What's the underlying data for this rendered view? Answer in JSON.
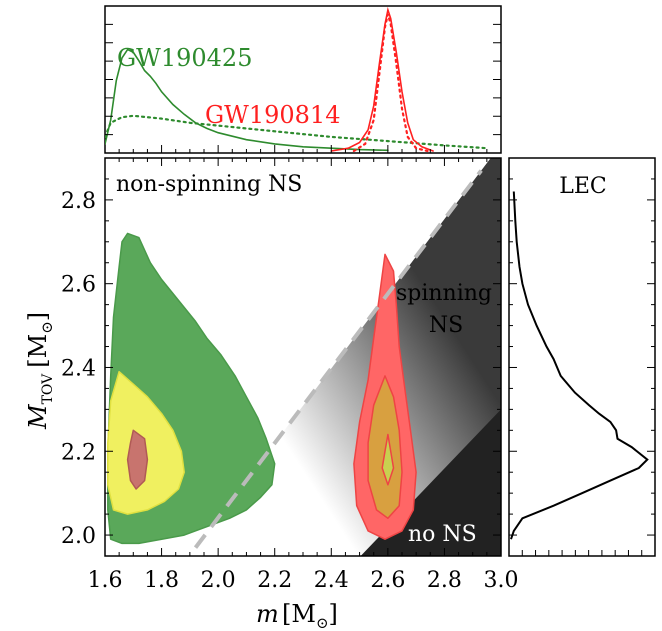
{
  "chart_data": [
    {
      "type": "line",
      "panel": "top-marginal",
      "xlim": [
        1.6,
        3.0
      ],
      "title": "",
      "xlabel": "",
      "ylabel": "",
      "series": [
        {
          "name": "GW190425",
          "color": "#2e8b2e",
          "style": "solid",
          "points": [
            [
              1.6,
              0.05
            ],
            [
              1.62,
              0.22
            ],
            [
              1.64,
              0.5
            ],
            [
              1.66,
              0.66
            ],
            [
              1.68,
              0.72
            ],
            [
              1.7,
              0.7
            ],
            [
              1.72,
              0.64
            ],
            [
              1.74,
              0.57
            ],
            [
              1.76,
              0.53
            ],
            [
              1.78,
              0.48
            ],
            [
              1.8,
              0.42
            ],
            [
              1.84,
              0.33
            ],
            [
              1.88,
              0.26
            ],
            [
              1.92,
              0.2
            ],
            [
              1.96,
              0.16
            ],
            [
              2.0,
              0.13
            ],
            [
              2.1,
              0.08
            ],
            [
              2.2,
              0.05
            ],
            [
              2.3,
              0.03
            ],
            [
              2.4,
              0.02
            ],
            [
              2.5,
              0.01
            ],
            [
              2.6,
              0.005
            ]
          ]
        },
        {
          "name": "GW190425",
          "color": "#2e8b2e",
          "style": "dotted",
          "points": [
            [
              1.6,
              0.1
            ],
            [
              1.62,
              0.2
            ],
            [
              1.66,
              0.24
            ],
            [
              1.7,
              0.25
            ],
            [
              1.8,
              0.23
            ],
            [
              1.9,
              0.2
            ],
            [
              2.0,
              0.18
            ],
            [
              2.2,
              0.14
            ],
            [
              2.4,
              0.1
            ],
            [
              2.6,
              0.07
            ],
            [
              2.8,
              0.04
            ],
            [
              2.95,
              0.02
            ]
          ]
        },
        {
          "name": "GW190814",
          "color": "#ff2020",
          "style": "solid",
          "points": [
            [
              2.4,
              0.0
            ],
            [
              2.46,
              0.02
            ],
            [
              2.5,
              0.06
            ],
            [
              2.53,
              0.15
            ],
            [
              2.55,
              0.32
            ],
            [
              2.57,
              0.62
            ],
            [
              2.59,
              0.9
            ],
            [
              2.6,
              1.0
            ],
            [
              2.61,
              0.94
            ],
            [
              2.63,
              0.7
            ],
            [
              2.65,
              0.42
            ],
            [
              2.67,
              0.2
            ],
            [
              2.69,
              0.08
            ],
            [
              2.72,
              0.03
            ],
            [
              2.76,
              0.0
            ]
          ]
        },
        {
          "name": "GW190814",
          "color": "#ff2020",
          "style": "dotted",
          "points": [
            [
              2.48,
              0.0
            ],
            [
              2.52,
              0.05
            ],
            [
              2.55,
              0.22
            ],
            [
              2.57,
              0.55
            ],
            [
              2.59,
              0.88
            ],
            [
              2.6,
              0.97
            ],
            [
              2.61,
              0.9
            ],
            [
              2.63,
              0.62
            ],
            [
              2.65,
              0.3
            ],
            [
              2.67,
              0.1
            ],
            [
              2.7,
              0.02
            ],
            [
              2.74,
              0.0
            ]
          ]
        }
      ],
      "annotations": [
        "GW190425",
        "GW190814"
      ]
    },
    {
      "type": "scatter",
      "panel": "main",
      "xlabel": "m [M_sun]",
      "ylabel": "M_TOV [M_sun]",
      "xlim": [
        1.6,
        3.0
      ],
      "ylim": [
        1.95,
        2.9
      ],
      "xticks": [
        "1.6",
        "1.8",
        "2.0",
        "2.2",
        "2.4",
        "2.6",
        "2.8",
        "3.0"
      ],
      "yticks": [
        "2.0",
        "2.2",
        "2.4",
        "2.6",
        "2.8"
      ],
      "regions": [
        "non-spinning NS",
        "spinning NS",
        "no NS"
      ],
      "region_lines": [
        {
          "name": "non-spinning limit",
          "style": "dashed",
          "color": "#bbbbbb",
          "points": [
            [
              1.92,
              1.97
            ],
            [
              2.93,
              2.87
            ]
          ]
        },
        {
          "name": "spinning limit",
          "points": [
            [
              2.47,
              1.95
            ],
            [
              3.0,
              2.3
            ]
          ]
        }
      ],
      "contours": [
        {
          "name": "GW190425 outer",
          "color": "#5aa85a",
          "points": [
            [
              1.68,
              2.72
            ],
            [
              1.72,
              2.71
            ],
            [
              1.76,
              2.65
            ],
            [
              1.8,
              2.61
            ],
            [
              1.86,
              2.56
            ],
            [
              1.92,
              2.51
            ],
            [
              1.96,
              2.47
            ],
            [
              2.01,
              2.43
            ],
            [
              2.06,
              2.38
            ],
            [
              2.1,
              2.33
            ],
            [
              2.14,
              2.28
            ],
            [
              2.17,
              2.23
            ],
            [
              2.2,
              2.17
            ],
            [
              2.19,
              2.12
            ],
            [
              2.15,
              2.09
            ],
            [
              2.1,
              2.06
            ],
            [
              2.04,
              2.04
            ],
            [
              1.96,
              2.02
            ],
            [
              1.88,
              2.0
            ],
            [
              1.8,
              1.99
            ],
            [
              1.72,
              1.98
            ],
            [
              1.66,
              1.98
            ],
            [
              1.62,
              1.99
            ],
            [
              1.61,
              2.06
            ],
            [
              1.61,
              2.2
            ],
            [
              1.62,
              2.38
            ],
            [
              1.63,
              2.52
            ],
            [
              1.65,
              2.64
            ],
            [
              1.66,
              2.7
            ]
          ]
        },
        {
          "name": "GW190425 mid",
          "color": "#f0f060",
          "points": [
            [
              1.65,
              2.39
            ],
            [
              1.7,
              2.36
            ],
            [
              1.75,
              2.33
            ],
            [
              1.8,
              2.29
            ],
            [
              1.84,
              2.25
            ],
            [
              1.87,
              2.2
            ],
            [
              1.88,
              2.15
            ],
            [
              1.86,
              2.11
            ],
            [
              1.81,
              2.08
            ],
            [
              1.75,
              2.06
            ],
            [
              1.68,
              2.05
            ],
            [
              1.63,
              2.06
            ],
            [
              1.61,
              2.12
            ],
            [
              1.61,
              2.22
            ],
            [
              1.62,
              2.32
            ]
          ]
        },
        {
          "name": "GW190425 inner",
          "color": "#c8746e",
          "points": [
            [
              1.7,
              2.25
            ],
            [
              1.74,
              2.23
            ],
            [
              1.75,
              2.18
            ],
            [
              1.74,
              2.13
            ],
            [
              1.71,
              2.11
            ],
            [
              1.69,
              2.13
            ],
            [
              1.68,
              2.18
            ],
            [
              1.69,
              2.22
            ]
          ]
        },
        {
          "name": "GW190814 outer",
          "color": "#ff6666",
          "points": [
            [
              2.59,
              2.67
            ],
            [
              2.62,
              2.63
            ],
            [
              2.63,
              2.55
            ],
            [
              2.64,
              2.45
            ],
            [
              2.66,
              2.35
            ],
            [
              2.68,
              2.25
            ],
            [
              2.7,
              2.15
            ],
            [
              2.69,
              2.06
            ],
            [
              2.65,
              2.01
            ],
            [
              2.59,
              1.99
            ],
            [
              2.53,
              2.01
            ],
            [
              2.49,
              2.07
            ],
            [
              2.48,
              2.17
            ],
            [
              2.5,
              2.27
            ],
            [
              2.53,
              2.37
            ],
            [
              2.55,
              2.47
            ],
            [
              2.57,
              2.57
            ]
          ]
        },
        {
          "name": "GW190814 mid",
          "color": "#d8a040",
          "points": [
            [
              2.59,
              2.38
            ],
            [
              2.62,
              2.33
            ],
            [
              2.64,
              2.25
            ],
            [
              2.65,
              2.15
            ],
            [
              2.64,
              2.07
            ],
            [
              2.6,
              2.04
            ],
            [
              2.56,
              2.06
            ],
            [
              2.53,
              2.13
            ],
            [
              2.53,
              2.22
            ],
            [
              2.55,
              2.31
            ]
          ]
        },
        {
          "name": "GW190814 inner",
          "color": "#c8d050",
          "points": [
            [
              2.6,
              2.24
            ],
            [
              2.61,
              2.2
            ],
            [
              2.62,
              2.16
            ],
            [
              2.6,
              2.12
            ],
            [
              2.58,
              2.16
            ],
            [
              2.59,
              2.2
            ]
          ]
        }
      ]
    },
    {
      "type": "line",
      "panel": "right-marginal",
      "title": "LEC",
      "ylim": [
        1.95,
        2.9
      ],
      "series": [
        {
          "name": "LEC",
          "color": "#000000",
          "points": [
            [
              0.0,
              1.99
            ],
            [
              0.02,
              2.01
            ],
            [
              0.08,
              2.04
            ],
            [
              0.3,
              2.07
            ],
            [
              0.5,
              2.1
            ],
            [
              0.7,
              2.13
            ],
            [
              0.9,
              2.16
            ],
            [
              0.96,
              2.18
            ],
            [
              0.85,
              2.21
            ],
            [
              0.75,
              2.23
            ],
            [
              0.74,
              2.25
            ],
            [
              0.7,
              2.27
            ],
            [
              0.62,
              2.29
            ],
            [
              0.55,
              2.31
            ],
            [
              0.45,
              2.34
            ],
            [
              0.35,
              2.38
            ],
            [
              0.3,
              2.42
            ],
            [
              0.25,
              2.45
            ],
            [
              0.18,
              2.5
            ],
            [
              0.12,
              2.55
            ],
            [
              0.08,
              2.6
            ],
            [
              0.06,
              2.64
            ],
            [
              0.04,
              2.7
            ],
            [
              0.03,
              2.75
            ],
            [
              0.02,
              2.82
            ]
          ]
        }
      ]
    }
  ],
  "labels": {
    "gw190425": "GW190425",
    "gw190814": "GW190814",
    "region_nonspinning": "non-spinning NS",
    "region_spinning_1": "spinning",
    "region_spinning_2": "NS",
    "region_no_ns": "no NS",
    "lec": "LEC",
    "xlabel_m": "m",
    "xlabel_unit": "[M",
    "xlabel_sun": "⊙",
    "xlabel_close": "]",
    "ylabel_m": "M",
    "ylabel_sub": "TOV",
    "ylabel_unit": "[M",
    "ylabel_sun": "⊙",
    "ylabel_close": "]"
  },
  "colors": {
    "green": "#2e8b2e",
    "red": "#ff2020",
    "dashed": "#bbbbbb"
  }
}
